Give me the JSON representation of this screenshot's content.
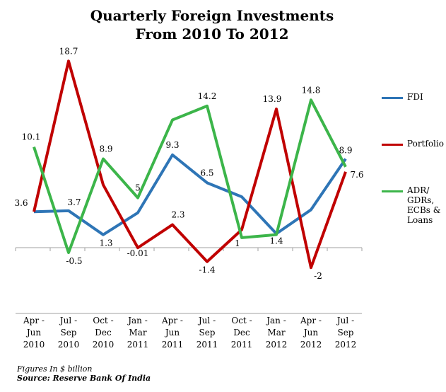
{
  "chart_data": {
    "type": "line",
    "title_line1": "Quarterly Foreign Investments",
    "title_line2": "From 2010 To 2012",
    "categories": [
      [
        "Apr -",
        "Jun",
        "2010"
      ],
      [
        "Jul -",
        "Sep",
        "2010"
      ],
      [
        "Oct -",
        "Dec",
        "2010"
      ],
      [
        "Jan -",
        "Mar",
        "2011"
      ],
      [
        "Apr -",
        "Jun",
        "2011"
      ],
      [
        "Jul -",
        "Sep",
        "2011"
      ],
      [
        "Oct -",
        "Dec",
        "2011"
      ],
      [
        "Jan -",
        "Mar",
        "2012"
      ],
      [
        "Apr -",
        "Jun",
        "2012"
      ],
      [
        "Jul -",
        "Sep",
        "2012"
      ]
    ],
    "ylim": [
      -4,
      20
    ],
    "grid": false,
    "legend_position": "right",
    "series": [
      {
        "name": "FDI",
        "legend_lines": [
          "FDI"
        ],
        "color": "#2e75b6",
        "values": [
          3.6,
          3.7,
          1.3,
          3.5,
          9.3,
          6.5,
          5.1,
          1.4,
          3.8,
          8.9
        ],
        "labels": [
          "3.6",
          "3.7",
          "1.3",
          "",
          "9.3",
          "6.5",
          "",
          "1.4",
          "",
          "8.9"
        ]
      },
      {
        "name": "Portfolio",
        "legend_lines": [
          "Portfolio"
        ],
        "color": "#c00000",
        "values": [
          3.6,
          18.7,
          6.3,
          -0.01,
          2.3,
          -1.4,
          1.8,
          13.9,
          -2,
          7.6
        ],
        "labels": [
          "",
          "18.7",
          "",
          "-0.01",
          "2.3",
          "-1.4",
          "",
          "13.9",
          "-2",
          "7.6"
        ]
      },
      {
        "name": "ADR/ GDRs, ECBs & Loans",
        "legend_lines": [
          "ADR/",
          "GDRs,",
          "ECBs &",
          "Loans"
        ],
        "color": "#3cb54a",
        "values": [
          10.1,
          -0.5,
          8.9,
          5,
          12.8,
          14.2,
          1,
          1.3,
          14.8,
          8.1
        ],
        "labels": [
          "10.1",
          "-0.5",
          "8.9",
          "5",
          "",
          "14.2",
          "1",
          "",
          "14.8",
          ""
        ]
      }
    ]
  },
  "footnotes": {
    "units": "Figures In $ billion",
    "source": "Source: Reserve Bank Of India"
  }
}
